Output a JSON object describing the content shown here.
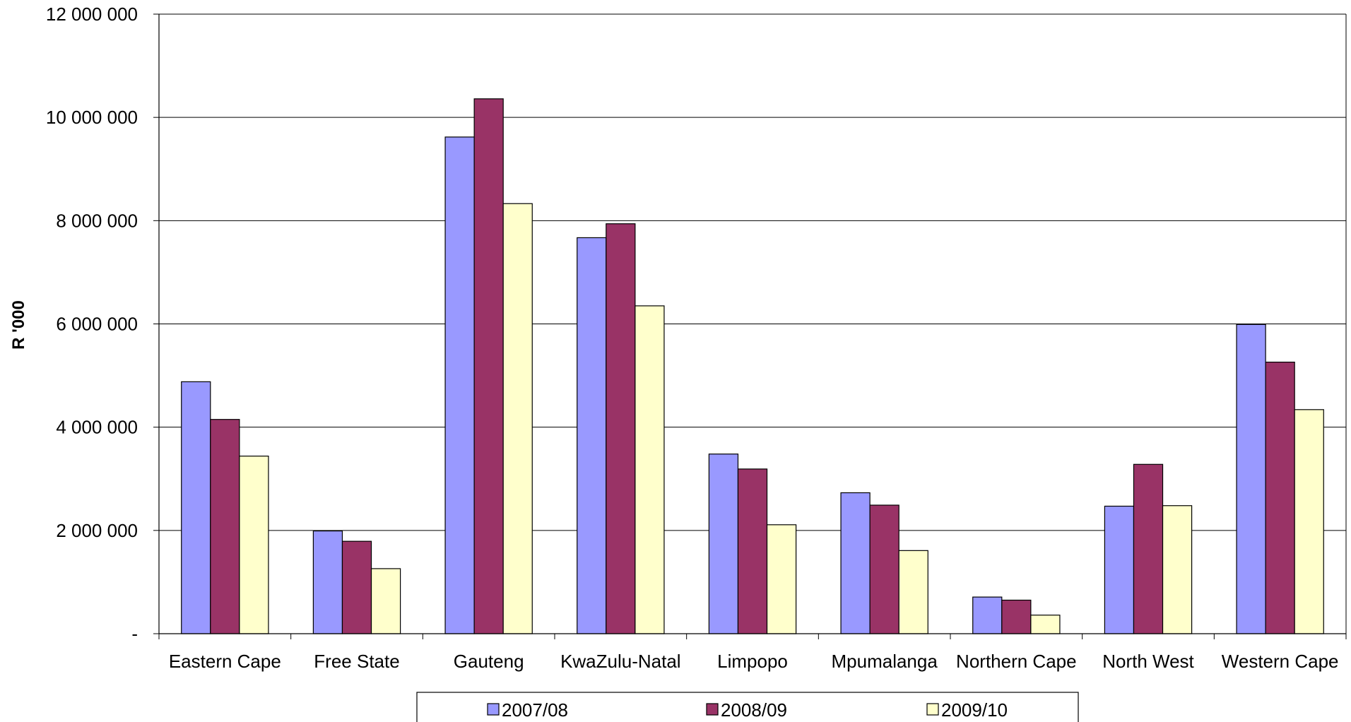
{
  "chart_data": {
    "type": "bar",
    "title": "",
    "xlabel": "",
    "ylabel": "R '000",
    "ylim": [
      0,
      12000000
    ],
    "yticks": [
      0,
      2000000,
      4000000,
      6000000,
      8000000,
      10000000,
      12000000
    ],
    "ytick_labels": [
      "-",
      "2 000 000",
      "4 000 000",
      "6 000 000",
      "8 000 000",
      "10 000 000",
      "12 000 000"
    ],
    "grid": true,
    "legend_position": "bottom",
    "categories": [
      "Eastern Cape",
      "Free State",
      "Gauteng",
      "KwaZulu-Natal",
      "Limpopo",
      "Mpumalanga",
      "Northern Cape",
      "North West",
      "Western Cape"
    ],
    "series": [
      {
        "name": "2007/08",
        "color": "#9999FF",
        "values": [
          4880000,
          1990000,
          9620000,
          7670000,
          3480000,
          2730000,
          710000,
          2470000,
          5990000
        ]
      },
      {
        "name": "2008/09",
        "color": "#993366",
        "values": [
          4150000,
          1790000,
          10360000,
          7940000,
          3190000,
          2490000,
          650000,
          3280000,
          5260000
        ]
      },
      {
        "name": "2009/10",
        "color": "#FFFFCC",
        "values": [
          3440000,
          1260000,
          8330000,
          6350000,
          2110000,
          1610000,
          360000,
          2480000,
          4340000
        ]
      }
    ]
  }
}
